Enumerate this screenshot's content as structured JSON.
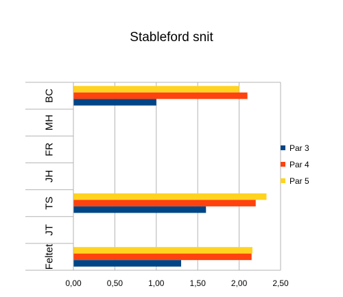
{
  "chart_data": {
    "type": "bar",
    "orientation": "horizontal",
    "title": "Stableford snit",
    "categories": [
      "BC",
      "MH",
      "FR",
      "JH",
      "TS",
      "JT",
      "Feltet"
    ],
    "series": [
      {
        "name": "Par 3",
        "color": "#004586",
        "values": [
          1.0,
          null,
          null,
          null,
          1.6,
          null,
          1.3
        ]
      },
      {
        "name": "Par 4",
        "color": "#ff420e",
        "values": [
          2.1,
          null,
          null,
          null,
          2.2,
          null,
          2.15
        ]
      },
      {
        "name": "Par 5",
        "color": "#ffd320",
        "values": [
          2.0,
          null,
          null,
          null,
          2.33,
          null,
          2.16
        ]
      }
    ],
    "xlim": [
      0,
      2.5
    ],
    "xticks": [
      "0,00",
      "0,50",
      "1,00",
      "1,50",
      "2,00",
      "2,50"
    ],
    "grid": true,
    "legend_position": "right"
  }
}
